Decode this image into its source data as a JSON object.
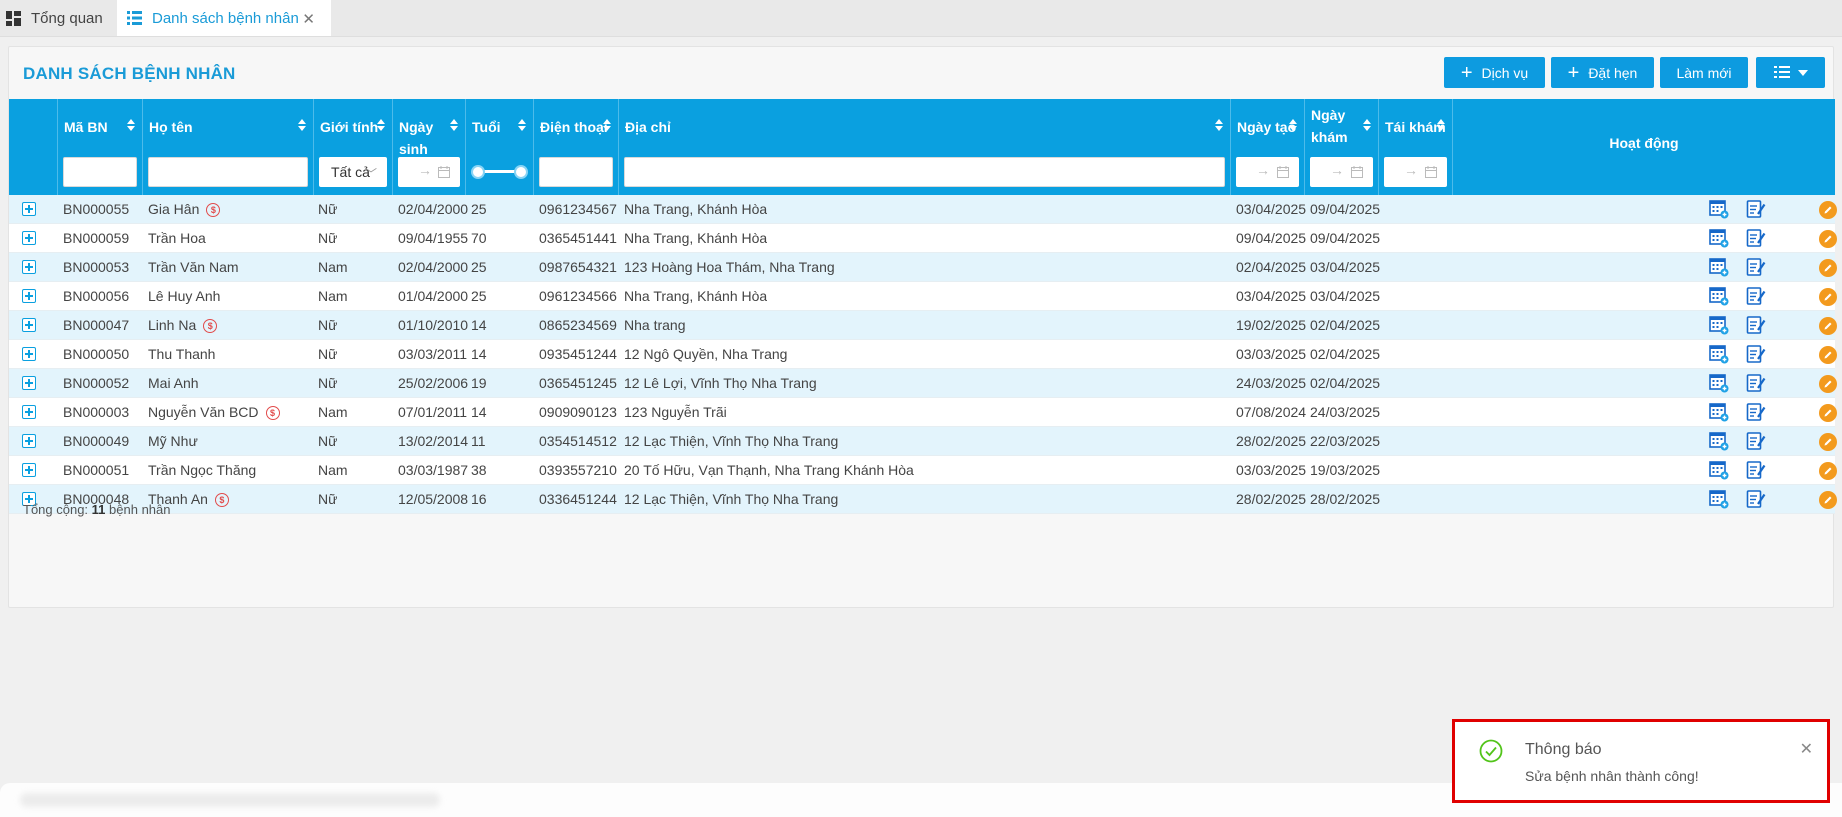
{
  "tabs": [
    {
      "label": "Tổng quan",
      "icon": "dashboard-icon"
    },
    {
      "label": "Danh sách bệnh nhân",
      "icon": "list-icon",
      "active": true
    }
  ],
  "page": {
    "title": "DANH SÁCH BỆNH NHÂN",
    "buttons": {
      "service": "Dịch vụ",
      "appointment": "Đặt hẹn",
      "refresh": "Làm mới",
      "view": "view-columns-icon"
    }
  },
  "table": {
    "columns": {
      "code": "Mã BN",
      "name": "Họ tên",
      "gender": "Giới tính",
      "dob": "Ngày sinh",
      "age": "Tuổi",
      "phone": "Điện thoại",
      "address": "Địa chỉ",
      "created": "Ngày tạo",
      "visit": "Ngày khám",
      "revisit": "Tái khám",
      "actions": "Hoạt động"
    },
    "filters": {
      "gender_selected": "Tất cả",
      "date_separator": "→"
    },
    "rows": [
      {
        "code": "BN000055",
        "name": "Gia Hân",
        "payment": true,
        "gender": "Nữ",
        "dob": "02/04/2000",
        "age": "25",
        "phone": "0961234567",
        "address": "Nha Trang, Khánh Hòa",
        "created": "03/04/2025",
        "visit": "09/04/2025",
        "revisit": ""
      },
      {
        "code": "BN000059",
        "name": "Trần Hoa",
        "payment": false,
        "gender": "Nữ",
        "dob": "09/04/1955",
        "age": "70",
        "phone": "0365451441",
        "address": "Nha Trang, Khánh Hòa",
        "created": "09/04/2025",
        "visit": "09/04/2025",
        "revisit": ""
      },
      {
        "code": "BN000053",
        "name": "Trần Văn Nam",
        "payment": false,
        "gender": "Nam",
        "dob": "02/04/2000",
        "age": "25",
        "phone": "0987654321",
        "address": "123 Hoàng Hoa Thám, Nha Trang",
        "created": "02/04/2025",
        "visit": "03/04/2025",
        "revisit": ""
      },
      {
        "code": "BN000056",
        "name": "Lê Huy Anh",
        "payment": false,
        "gender": "Nam",
        "dob": "01/04/2000",
        "age": "25",
        "phone": "0961234566",
        "address": "Nha Trang, Khánh Hòa",
        "created": "03/04/2025",
        "visit": "03/04/2025",
        "revisit": ""
      },
      {
        "code": "BN000047",
        "name": "Linh Na",
        "payment": true,
        "gender": "Nữ",
        "dob": "01/10/2010",
        "age": "14",
        "phone": "0865234569",
        "address": "Nha trang",
        "created": "19/02/2025",
        "visit": "02/04/2025",
        "revisit": ""
      },
      {
        "code": "BN000050",
        "name": "Thu Thanh",
        "payment": false,
        "gender": "Nữ",
        "dob": "03/03/2011",
        "age": "14",
        "phone": "0935451244",
        "address": "12 Ngô Quyền, Nha Trang",
        "created": "03/03/2025",
        "visit": "02/04/2025",
        "revisit": ""
      },
      {
        "code": "BN000052",
        "name": "Mai Anh",
        "payment": false,
        "gender": "Nữ",
        "dob": "25/02/2006",
        "age": "19",
        "phone": "0365451245",
        "address": "12 Lê Lợi, Vĩnh Thọ Nha Trang",
        "created": "24/03/2025",
        "visit": "02/04/2025",
        "revisit": ""
      },
      {
        "code": "BN000003",
        "name": "Nguyễn Văn BCD",
        "payment": true,
        "gender": "Nam",
        "dob": "07/01/2011",
        "age": "14",
        "phone": "0909090123",
        "address": "123 Nguyễn Trãi",
        "created": "07/08/2024",
        "visit": "24/03/2025",
        "revisit": ""
      },
      {
        "code": "BN000049",
        "name": "Mỹ Như",
        "payment": false,
        "gender": "Nữ",
        "dob": "13/02/2014",
        "age": "11",
        "phone": "0354514512",
        "address": "12 Lạc Thiện, Vĩnh Thọ Nha Trang",
        "created": "28/02/2025",
        "visit": "22/03/2025",
        "revisit": ""
      },
      {
        "code": "BN000051",
        "name": "Trần Ngọc Thăng",
        "payment": false,
        "gender": "Nam",
        "dob": "03/03/1987",
        "age": "38",
        "phone": "0393557210",
        "address": "20 Tố Hữu, Vạn Thạnh, Nha Trang Khánh Hòa",
        "created": "03/03/2025",
        "visit": "19/03/2025",
        "revisit": ""
      },
      {
        "code": "BN000048",
        "name": "Thanh An",
        "payment": true,
        "gender": "Nữ",
        "dob": "12/05/2008",
        "age": "16",
        "phone": "0336451244",
        "address": "12 Lạc Thiện, Vĩnh Thọ Nha Trang",
        "created": "28/02/2025",
        "visit": "28/02/2025",
        "revisit": ""
      }
    ],
    "total_prefix": "Tổng cộng:",
    "total_count": "11",
    "total_suffix": "bệnh nhân"
  },
  "toast": {
    "title": "Thông báo",
    "message": "Sửa bệnh nhân thành công!",
    "icon": "check-circle-icon"
  },
  "colors": {
    "primary": "#0aa0e0",
    "row_alt": "#e3f4fc",
    "edit_button": "#f39a1d",
    "payment_badge": "#e24b4b",
    "toast_border": "#e00000",
    "success": "#52c41a"
  }
}
